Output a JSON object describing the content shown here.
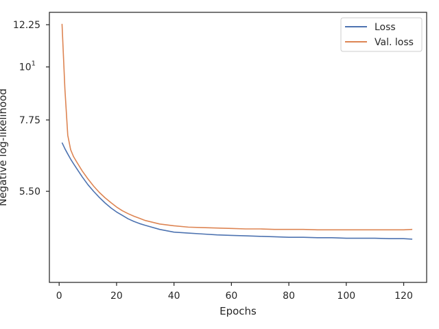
{
  "chart_data": {
    "type": "line",
    "xlabel": "Epochs",
    "ylabel": "Negative log-likelihood",
    "xlim": [
      -3.4,
      128
    ],
    "ylim": [
      3.55,
      13.0
    ],
    "y_scale": "log",
    "grid": false,
    "legend_position": "top-right",
    "xticks": [
      0,
      20,
      40,
      60,
      80,
      100,
      120
    ],
    "yticks": [
      {
        "value": 5.5,
        "label": "5.50"
      },
      {
        "value": 7.75,
        "label": "7.75"
      },
      {
        "value": 10,
        "label": "10",
        "superscript": "1"
      },
      {
        "value": 12.25,
        "label": "12.25"
      }
    ],
    "x": [
      1,
      2,
      3,
      4,
      5,
      6,
      8,
      10,
      12,
      14,
      16,
      18,
      20,
      22,
      24,
      26,
      28,
      30,
      35,
      40,
      45,
      50,
      55,
      60,
      65,
      70,
      75,
      80,
      85,
      90,
      95,
      100,
      105,
      110,
      115,
      120,
      123
    ],
    "series": [
      {
        "name": "Loss",
        "color": "#4c72b0",
        "values": [
          6.95,
          6.75,
          6.58,
          6.42,
          6.28,
          6.15,
          5.9,
          5.68,
          5.5,
          5.34,
          5.2,
          5.08,
          4.98,
          4.9,
          4.82,
          4.76,
          4.71,
          4.67,
          4.58,
          4.52,
          4.5,
          4.48,
          4.46,
          4.45,
          4.44,
          4.43,
          4.42,
          4.41,
          4.41,
          4.4,
          4.4,
          4.39,
          4.39,
          4.39,
          4.38,
          4.38,
          4.37
        ]
      },
      {
        "name": "Val. loss",
        "color": "#dd8452",
        "values": [
          12.3,
          9.0,
          7.2,
          6.72,
          6.5,
          6.35,
          6.07,
          5.84,
          5.64,
          5.47,
          5.33,
          5.21,
          5.1,
          5.01,
          4.94,
          4.88,
          4.83,
          4.78,
          4.7,
          4.66,
          4.63,
          4.62,
          4.61,
          4.6,
          4.59,
          4.59,
          4.58,
          4.58,
          4.58,
          4.57,
          4.57,
          4.57,
          4.57,
          4.57,
          4.57,
          4.57,
          4.58
        ]
      }
    ]
  }
}
